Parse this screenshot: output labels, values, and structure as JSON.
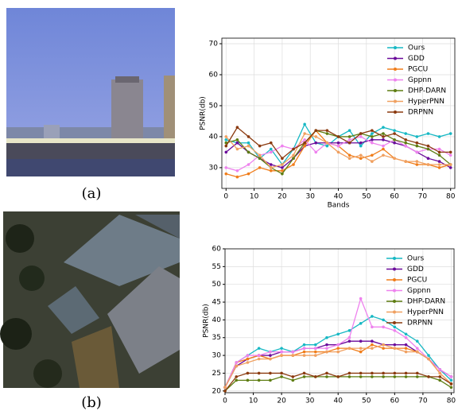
{
  "captions": [
    "(a)",
    "(b)"
  ],
  "chart_data": [
    {
      "type": "line",
      "ylabel": "PSNR(db)",
      "xlabel": "Bands",
      "x": [
        0,
        4,
        8,
        12,
        16,
        20,
        24,
        28,
        32,
        36,
        40,
        44,
        48,
        52,
        56,
        60,
        64,
        68,
        72,
        76,
        80
      ],
      "xlim": [
        -1.5,
        81.5
      ],
      "xticks": [
        0,
        10,
        20,
        30,
        40,
        50,
        60,
        70,
        80
      ],
      "ylim": [
        23.3,
        71.8
      ],
      "yticks": [
        30,
        40,
        50,
        60,
        70
      ],
      "grid": true,
      "legend": "upper right",
      "series": [
        {
          "name": "Ours",
          "color": "#17b8c4",
          "values": [
            39,
            38,
            38,
            33,
            36,
            31,
            36,
            44,
            38,
            37,
            40,
            42,
            37,
            41,
            43,
            42,
            41,
            40,
            41,
            40,
            41
          ]
        },
        {
          "name": "GDD",
          "color": "#6a0a9a",
          "values": [
            35,
            38,
            35,
            33,
            31,
            30,
            33,
            37,
            38,
            38,
            38,
            38,
            38,
            39,
            39,
            38,
            37,
            35,
            33,
            32,
            30
          ]
        },
        {
          "name": "PGCU",
          "color": "#f07d1a",
          "values": [
            28,
            27,
            28,
            30,
            29,
            29,
            31,
            37,
            42,
            38,
            37,
            34,
            33,
            34,
            36,
            33,
            32,
            31,
            31,
            30,
            31
          ]
        },
        {
          "name": "Gppnn",
          "color": "#ee82ee",
          "values": [
            30,
            29,
            31,
            34,
            35,
            37,
            36,
            39,
            35,
            38,
            37,
            39,
            40,
            38,
            37,
            39,
            37,
            35,
            36,
            36,
            34
          ]
        },
        {
          "name": "DHP-DARN",
          "color": "#5e7d12",
          "values": [
            38,
            39,
            35,
            33,
            30,
            28,
            33,
            38,
            42,
            41,
            40,
            40,
            41,
            40,
            41,
            39,
            38,
            37,
            36,
            34,
            31
          ]
        },
        {
          "name": "HyperPNN",
          "color": "#f0a060",
          "values": [
            40,
            36,
            37,
            34,
            30,
            31,
            34,
            41,
            40,
            38,
            35,
            33,
            34,
            32,
            34,
            33,
            32,
            32,
            31,
            31,
            31
          ]
        },
        {
          "name": "DRPNN",
          "color": "#8b3a0f",
          "values": [
            37,
            43,
            40,
            37,
            38,
            33,
            36,
            38,
            42,
            42,
            40,
            38,
            41,
            42,
            40,
            41,
            39,
            38,
            37,
            35,
            35
          ]
        }
      ]
    },
    {
      "type": "line",
      "ylabel": "PSNR(db)",
      "x": [
        0,
        4,
        8,
        12,
        16,
        20,
        24,
        28,
        32,
        36,
        40,
        44,
        48,
        52,
        56,
        60,
        64,
        68,
        72,
        76,
        80
      ],
      "xlim": [
        0,
        81
      ],
      "xticks": [
        0,
        10,
        20,
        30,
        40,
        50,
        60,
        70,
        80
      ],
      "ylim": [
        19.5,
        60
      ],
      "yticks": [
        20,
        25,
        30,
        35,
        40,
        45,
        50,
        55,
        60
      ],
      "grid": true,
      "legend": "upper right",
      "series": [
        {
          "name": "Ours",
          "color": "#17b8c4",
          "values": [
            21,
            28,
            30,
            32,
            31,
            32,
            31,
            33,
            33,
            35,
            36,
            37,
            39,
            41,
            40,
            38,
            36,
            34,
            30,
            26,
            23
          ]
        },
        {
          "name": "GDD",
          "color": "#6a0a9a",
          "values": [
            21,
            27,
            29,
            30,
            30,
            31,
            31,
            32,
            32,
            33,
            33,
            34,
            34,
            34,
            33,
            33,
            33,
            31,
            29,
            26,
            24
          ]
        },
        {
          "name": "PGCU",
          "color": "#f07d1a",
          "values": [
            21,
            28,
            29,
            30,
            29,
            30,
            30,
            31,
            31,
            31,
            32,
            32,
            31,
            33,
            32,
            32,
            32,
            31,
            29,
            25,
            22
          ]
        },
        {
          "name": "Gppnn",
          "color": "#ee82ee",
          "values": [
            21,
            28,
            30,
            30,
            31,
            31,
            31,
            32,
            32,
            32,
            33,
            35,
            46,
            38,
            38,
            37,
            35,
            32,
            29,
            26,
            24
          ]
        },
        {
          "name": "DHP-DARN",
          "color": "#5e7d12",
          "values": [
            20,
            23,
            23,
            23,
            23,
            24,
            23,
            24,
            24,
            24,
            24,
            24,
            24,
            24,
            24,
            24,
            24,
            24,
            24,
            23,
            21
          ]
        },
        {
          "name": "HyperPNN",
          "color": "#f0a060",
          "values": [
            21,
            27,
            28,
            29,
            29,
            30,
            30,
            30,
            30,
            31,
            31,
            32,
            32,
            32,
            33,
            32,
            31,
            31,
            29,
            25,
            22
          ]
        },
        {
          "name": "DRPNN",
          "color": "#8b3a0f",
          "values": [
            20,
            24,
            25,
            25,
            25,
            25,
            24,
            25,
            24,
            25,
            24,
            25,
            25,
            25,
            25,
            25,
            25,
            25,
            24,
            24,
            22
          ]
        }
      ]
    }
  ]
}
